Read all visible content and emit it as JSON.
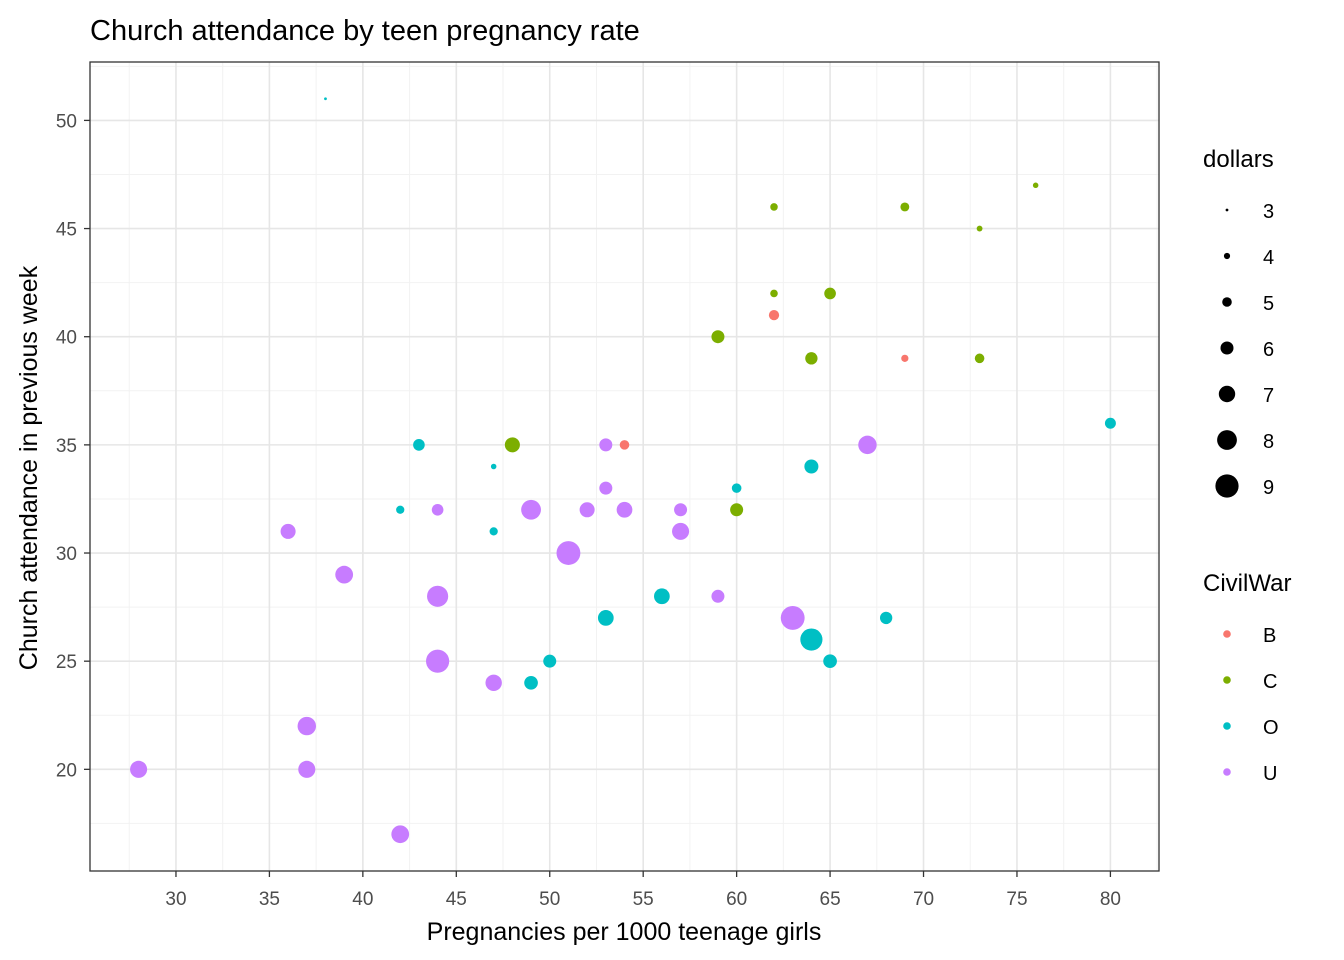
{
  "chart_data": {
    "type": "scatter",
    "title": "Church attendance by teen pregnancy rate",
    "xlabel": "Pregnancies per 1000 teenage girls",
    "ylabel": "Church attendance in previous week",
    "xlim": [
      25.4,
      82.6
    ],
    "ylim": [
      15.3,
      52.7
    ],
    "xticks": [
      30,
      35,
      40,
      45,
      50,
      55,
      60,
      65,
      70,
      75,
      80
    ],
    "yticks": [
      20,
      25,
      30,
      35,
      40,
      45,
      50
    ],
    "grid": true,
    "legend_position": "right",
    "size_legend": {
      "title": "dollars",
      "values": [
        3,
        4,
        5,
        6,
        7,
        8,
        9
      ]
    },
    "color_legend": {
      "title": "CivilWar",
      "categories": [
        "B",
        "C",
        "O",
        "U"
      ],
      "colors": {
        "B": "#F8766D",
        "C": "#7CAE00",
        "O": "#00BFC4",
        "U": "#C77CFF"
      }
    },
    "points": [
      {
        "x": 62,
        "y": 41,
        "dollars": 5.2,
        "group": "B"
      },
      {
        "x": 69,
        "y": 39,
        "dollars": 4.3,
        "group": "B"
      },
      {
        "x": 54,
        "y": 35,
        "dollars": 5.0,
        "group": "B"
      },
      {
        "x": 76,
        "y": 47,
        "dollars": 3.8,
        "group": "C"
      },
      {
        "x": 62,
        "y": 46,
        "dollars": 4.4,
        "group": "C"
      },
      {
        "x": 69,
        "y": 46,
        "dollars": 4.8,
        "group": "C"
      },
      {
        "x": 73,
        "y": 45,
        "dollars": 3.9,
        "group": "C"
      },
      {
        "x": 62,
        "y": 42,
        "dollars": 4.4,
        "group": "C"
      },
      {
        "x": 65,
        "y": 42,
        "dollars": 5.6,
        "group": "C"
      },
      {
        "x": 59,
        "y": 40,
        "dollars": 6.0,
        "group": "C"
      },
      {
        "x": 64,
        "y": 39,
        "dollars": 5.8,
        "group": "C"
      },
      {
        "x": 73,
        "y": 39,
        "dollars": 5.0,
        "group": "C"
      },
      {
        "x": 48,
        "y": 35,
        "dollars": 6.6,
        "group": "C"
      },
      {
        "x": 60,
        "y": 32,
        "dollars": 6.0,
        "group": "C"
      },
      {
        "x": 38,
        "y": 51,
        "dollars": 3.0,
        "group": "O"
      },
      {
        "x": 80,
        "y": 36,
        "dollars": 5.4,
        "group": "O"
      },
      {
        "x": 43,
        "y": 35,
        "dollars": 5.6,
        "group": "O"
      },
      {
        "x": 47,
        "y": 34,
        "dollars": 3.8,
        "group": "O"
      },
      {
        "x": 64,
        "y": 34,
        "dollars": 6.3,
        "group": "O"
      },
      {
        "x": 60,
        "y": 33,
        "dollars": 5.0,
        "group": "O"
      },
      {
        "x": 42,
        "y": 32,
        "dollars": 4.6,
        "group": "O"
      },
      {
        "x": 47,
        "y": 31,
        "dollars": 4.6,
        "group": "O"
      },
      {
        "x": 56,
        "y": 28,
        "dollars": 6.8,
        "group": "O"
      },
      {
        "x": 53,
        "y": 27,
        "dollars": 6.8,
        "group": "O"
      },
      {
        "x": 68,
        "y": 27,
        "dollars": 5.8,
        "group": "O"
      },
      {
        "x": 64,
        "y": 26,
        "dollars": 8.7,
        "group": "O"
      },
      {
        "x": 50,
        "y": 25,
        "dollars": 6.0,
        "group": "O"
      },
      {
        "x": 65,
        "y": 25,
        "dollars": 6.2,
        "group": "O"
      },
      {
        "x": 49,
        "y": 24,
        "dollars": 6.2,
        "group": "O"
      },
      {
        "x": 53,
        "y": 35,
        "dollars": 6.0,
        "group": "U"
      },
      {
        "x": 67,
        "y": 35,
        "dollars": 7.6,
        "group": "U"
      },
      {
        "x": 53,
        "y": 33,
        "dollars": 6.0,
        "group": "U"
      },
      {
        "x": 44,
        "y": 32,
        "dollars": 5.6,
        "group": "U"
      },
      {
        "x": 49,
        "y": 32,
        "dollars": 8.0,
        "group": "U"
      },
      {
        "x": 52,
        "y": 32,
        "dollars": 6.6,
        "group": "U"
      },
      {
        "x": 54,
        "y": 32,
        "dollars": 6.8,
        "group": "U"
      },
      {
        "x": 57,
        "y": 32,
        "dollars": 6.0,
        "group": "U"
      },
      {
        "x": 36,
        "y": 31,
        "dollars": 6.6,
        "group": "U"
      },
      {
        "x": 57,
        "y": 31,
        "dollars": 7.2,
        "group": "U"
      },
      {
        "x": 51,
        "y": 30,
        "dollars": 9.2,
        "group": "U"
      },
      {
        "x": 39,
        "y": 29,
        "dollars": 7.4,
        "group": "U"
      },
      {
        "x": 44,
        "y": 28,
        "dollars": 8.4,
        "group": "U"
      },
      {
        "x": 59,
        "y": 28,
        "dollars": 6.0,
        "group": "U"
      },
      {
        "x": 63,
        "y": 27,
        "dollars": 9.2,
        "group": "U"
      },
      {
        "x": 44,
        "y": 25,
        "dollars": 9.0,
        "group": "U"
      },
      {
        "x": 47,
        "y": 24,
        "dollars": 7.0,
        "group": "U"
      },
      {
        "x": 37,
        "y": 22,
        "dollars": 7.6,
        "group": "U"
      },
      {
        "x": 28,
        "y": 20,
        "dollars": 7.2,
        "group": "U"
      },
      {
        "x": 37,
        "y": 20,
        "dollars": 7.2,
        "group": "U"
      },
      {
        "x": 42,
        "y": 17,
        "dollars": 7.4,
        "group": "U"
      }
    ]
  }
}
